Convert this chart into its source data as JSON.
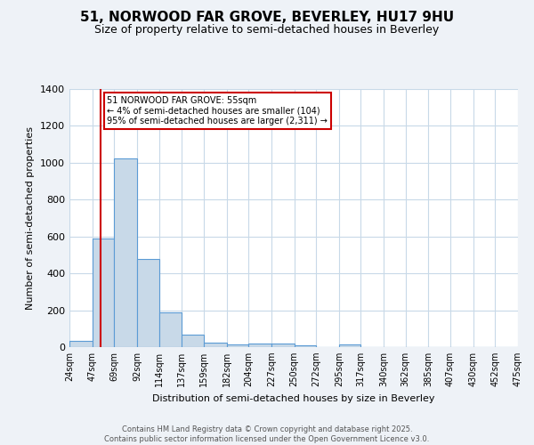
{
  "title": "51, NORWOOD FAR GROVE, BEVERLEY, HU17 9HU",
  "subtitle": "Size of property relative to semi-detached houses in Beverley",
  "xlabel": "Distribution of semi-detached houses by size in Beverley",
  "ylabel": "Number of semi-detached properties",
  "bin_edges": [
    24,
    47,
    69,
    92,
    114,
    137,
    159,
    182,
    204,
    227,
    250,
    272,
    295,
    317,
    340,
    362,
    385,
    407,
    430,
    452,
    475
  ],
  "bar_heights": [
    35,
    590,
    1025,
    480,
    190,
    70,
    25,
    15,
    20,
    20,
    10,
    0,
    15,
    0,
    0,
    0,
    0,
    0,
    0,
    0
  ],
  "bar_color": "#c8d9e8",
  "bar_edge_color": "#5b9bd5",
  "property_size": 55,
  "red_line_color": "#cc0000",
  "ylim": [
    0,
    1400
  ],
  "annotation_text": "51 NORWOOD FAR GROVE: 55sqm\n← 4% of semi-detached houses are smaller (104)\n95% of semi-detached houses are larger (2,311) →",
  "annotation_box_color": "#ffffff",
  "annotation_box_edge_color": "#cc0000",
  "footer_line1": "Contains HM Land Registry data © Crown copyright and database right 2025.",
  "footer_line2": "Contains public sector information licensed under the Open Government Licence v3.0.",
  "background_color": "#eef2f7",
  "plot_background_color": "#ffffff",
  "grid_color": "#c8d9e8",
  "title_fontsize": 11,
  "subtitle_fontsize": 9,
  "tick_labels": [
    "24sqm",
    "47sqm",
    "69sqm",
    "92sqm",
    "114sqm",
    "137sqm",
    "159sqm",
    "182sqm",
    "204sqm",
    "227sqm",
    "250sqm",
    "272sqm",
    "295sqm",
    "317sqm",
    "340sqm",
    "362sqm",
    "385sqm",
    "407sqm",
    "430sqm",
    "452sqm",
    "475sqm"
  ]
}
